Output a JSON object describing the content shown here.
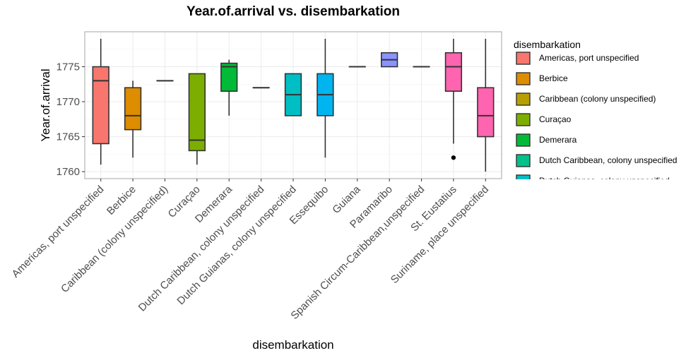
{
  "chart_data": {
    "type": "boxplot",
    "title": "Year.of.arrival vs. disembarkation",
    "xlabel": "disembarkation",
    "ylabel": "Year.of.arrival",
    "ylim": [
      1759,
      1780
    ],
    "yticks": [
      1760,
      1765,
      1770,
      1775
    ],
    "grid": true,
    "legend_title": "disembarkation",
    "legend_position": "right",
    "categories": [
      "Americas, port unspecified",
      "Berbice",
      "Caribbean (colony unspecified)",
      "Curaçao",
      "Demerara",
      "Dutch Caribbean, colony unspecified",
      "Dutch Guianas, colony unspecified",
      "Essequibo",
      "Guiana",
      "Paramaribo",
      "Spanish Circum-Caribbean,unspecified",
      "St. Eustatius",
      "Suriname, place unspecified"
    ],
    "colors": [
      "#F8766D",
      "#DB8E00",
      "#AEA200",
      "#64B200",
      "#00BD5C",
      "#00C1A7",
      "#00BADE",
      "#00A6FF",
      "#B385FF",
      "#8B93FF",
      "#EF67EB",
      "#FF63B6",
      "#FF6C91"
    ],
    "box_colors": [
      "#F8766D",
      "#DE8C00",
      "#B79F00",
      "#7CAE00",
      "#00BA38",
      "#00C08B",
      "#00BFC4",
      "#00B4F0",
      "#619CFF",
      "#8B93FF",
      "#F564E3",
      "#FF64B0",
      "#FF64B0"
    ],
    "boxes": [
      {
        "min": 1761,
        "q1": 1764,
        "median": 1773,
        "q3": 1775,
        "max": 1779,
        "outliers": []
      },
      {
        "min": 1762,
        "q1": 1766,
        "median": 1768,
        "q3": 1772,
        "max": 1773,
        "outliers": []
      },
      {
        "min": 1773,
        "q1": 1773,
        "median": 1773,
        "q3": 1773,
        "max": 1773,
        "outliers": []
      },
      {
        "min": 1761,
        "q1": 1763,
        "median": 1764.5,
        "q3": 1774,
        "max": 1774,
        "outliers": []
      },
      {
        "min": 1768,
        "q1": 1771.5,
        "median": 1775,
        "q3": 1775.5,
        "max": 1776,
        "outliers": []
      },
      {
        "min": 1772,
        "q1": 1772,
        "median": 1772,
        "q3": 1772,
        "max": 1772,
        "outliers": []
      },
      {
        "min": 1768,
        "q1": 1768,
        "median": 1771,
        "q3": 1774,
        "max": 1774,
        "outliers": []
      },
      {
        "min": 1762,
        "q1": 1768,
        "median": 1771,
        "q3": 1774,
        "max": 1779,
        "outliers": []
      },
      {
        "min": 1775,
        "q1": 1775,
        "median": 1775,
        "q3": 1775,
        "max": 1775,
        "outliers": []
      },
      {
        "min": 1775,
        "q1": 1775,
        "median": 1776,
        "q3": 1777,
        "max": 1777,
        "outliers": []
      },
      {
        "min": 1775,
        "q1": 1775,
        "median": 1775,
        "q3": 1775,
        "max": 1775,
        "outliers": []
      },
      {
        "min": 1764,
        "q1": 1771.5,
        "median": 1775,
        "q3": 1777,
        "max": 1779,
        "outliers": [
          1762
        ]
      },
      {
        "min": 1760,
        "q1": 1765,
        "median": 1768,
        "q3": 1772,
        "max": 1779,
        "outliers": []
      }
    ],
    "legend_visible_count": 7
  }
}
